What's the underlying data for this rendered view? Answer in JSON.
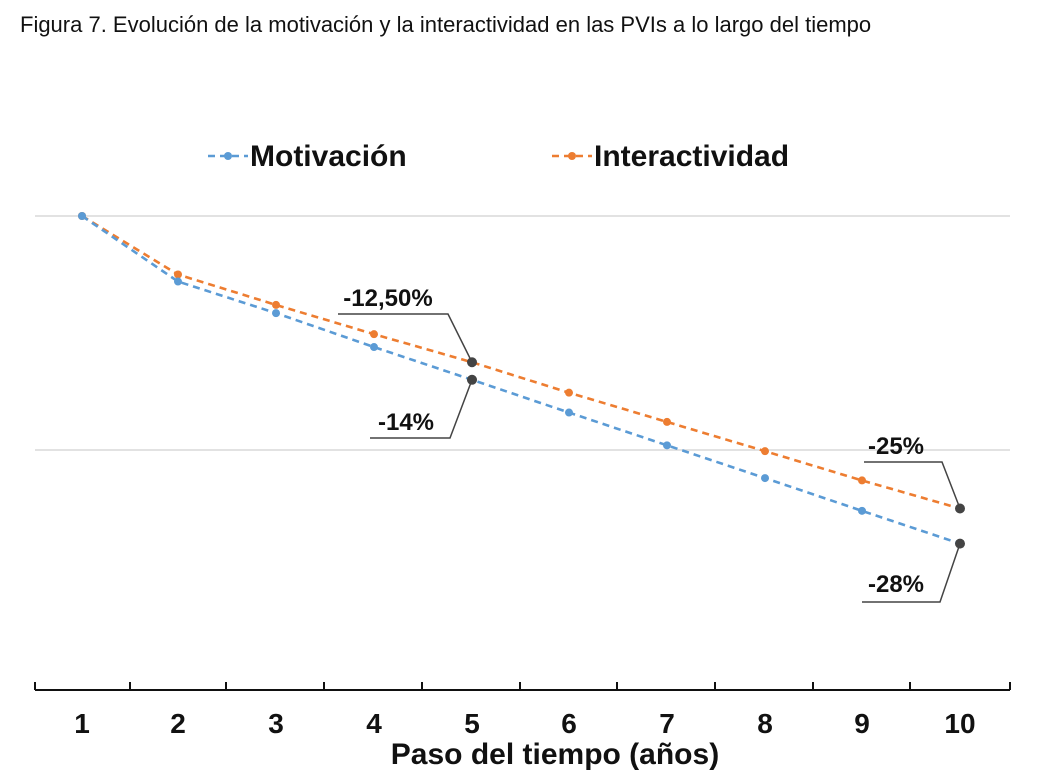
{
  "caption": "Figura 7. Evolución de la motivación y la interactividad en las PVIs a lo largo del tiempo",
  "chart_data": {
    "type": "line",
    "title": "",
    "xlabel": "Paso del tiempo (años)",
    "ylabel": "",
    "categories": [
      "1",
      "2",
      "3",
      "4",
      "5",
      "6",
      "7",
      "8",
      "9",
      "10"
    ],
    "x": [
      1,
      2,
      3,
      4,
      5,
      6,
      7,
      8,
      9,
      10
    ],
    "ylim": [
      -40,
      0
    ],
    "grid": true,
    "legend_position": "top",
    "series": [
      {
        "name": "Motivación",
        "color": "#5b9bd5",
        "values": [
          0,
          -5.6,
          -8.3,
          -11.2,
          -14,
          -16.8,
          -19.6,
          -22.4,
          -25.2,
          -28
        ]
      },
      {
        "name": "Interactividad",
        "color": "#ed7d31",
        "values": [
          0,
          -5,
          -7.6,
          -10.1,
          -12.5,
          -15.1,
          -17.6,
          -20.1,
          -22.6,
          -25
        ]
      }
    ],
    "annotations": [
      {
        "series": "Interactividad",
        "x": 5,
        "label": "-12,50%"
      },
      {
        "series": "Motivación",
        "x": 5,
        "label": "-14%"
      },
      {
        "series": "Interactividad",
        "x": 10,
        "label": "-25%"
      },
      {
        "series": "Motivación",
        "x": 10,
        "label": "-28%"
      }
    ]
  }
}
